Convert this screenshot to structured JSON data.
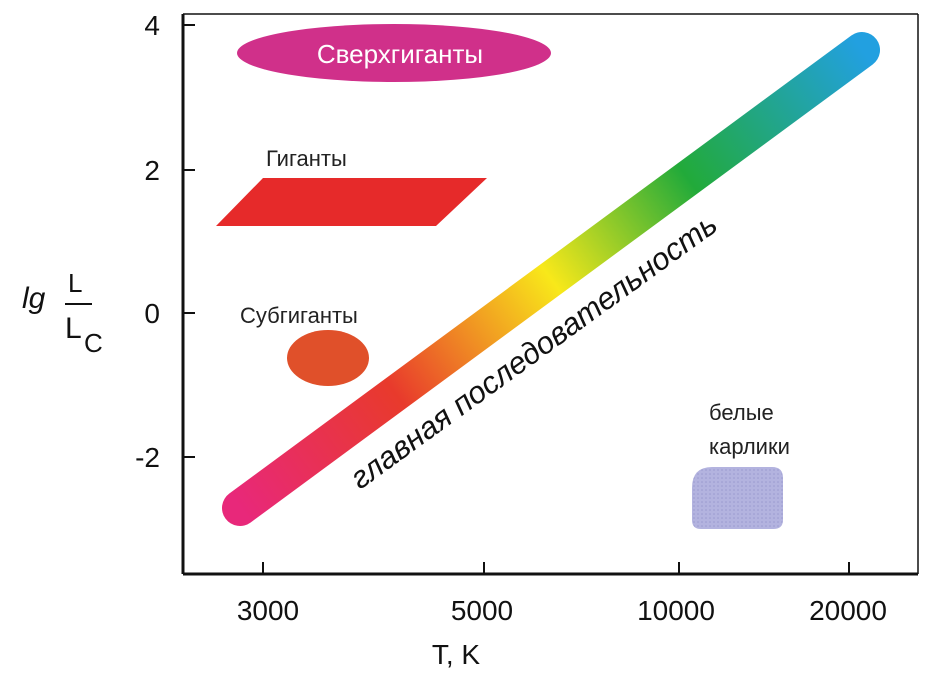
{
  "y_axis": {
    "label_prefix": "lg",
    "label_numerator": "L",
    "label_denominator": "L",
    "label_subscript": "C",
    "ticks": [
      "4",
      "2",
      "0",
      "-2"
    ]
  },
  "x_axis": {
    "label": "T, K",
    "ticks": [
      "3000",
      "5000",
      "10000",
      "20000"
    ]
  },
  "regions": {
    "supergiants": "Сверхгиганты",
    "giants": "Гиганты",
    "subgiants": "Субгиганты",
    "main_sequence": "главная последовательность",
    "white_dwarfs_line1": "белые",
    "white_dwarfs_line2": "карлики"
  },
  "colors": {
    "supergiants": "#d0308a",
    "giants": "#e62a2a",
    "subgiants": "#e0502a",
    "white_dwarfs": "#b3b3df",
    "main_sequence_gradient": [
      "#e8287a",
      "#e83a2c",
      "#f8e81a",
      "#22aa3a",
      "#22a0e0"
    ]
  }
}
